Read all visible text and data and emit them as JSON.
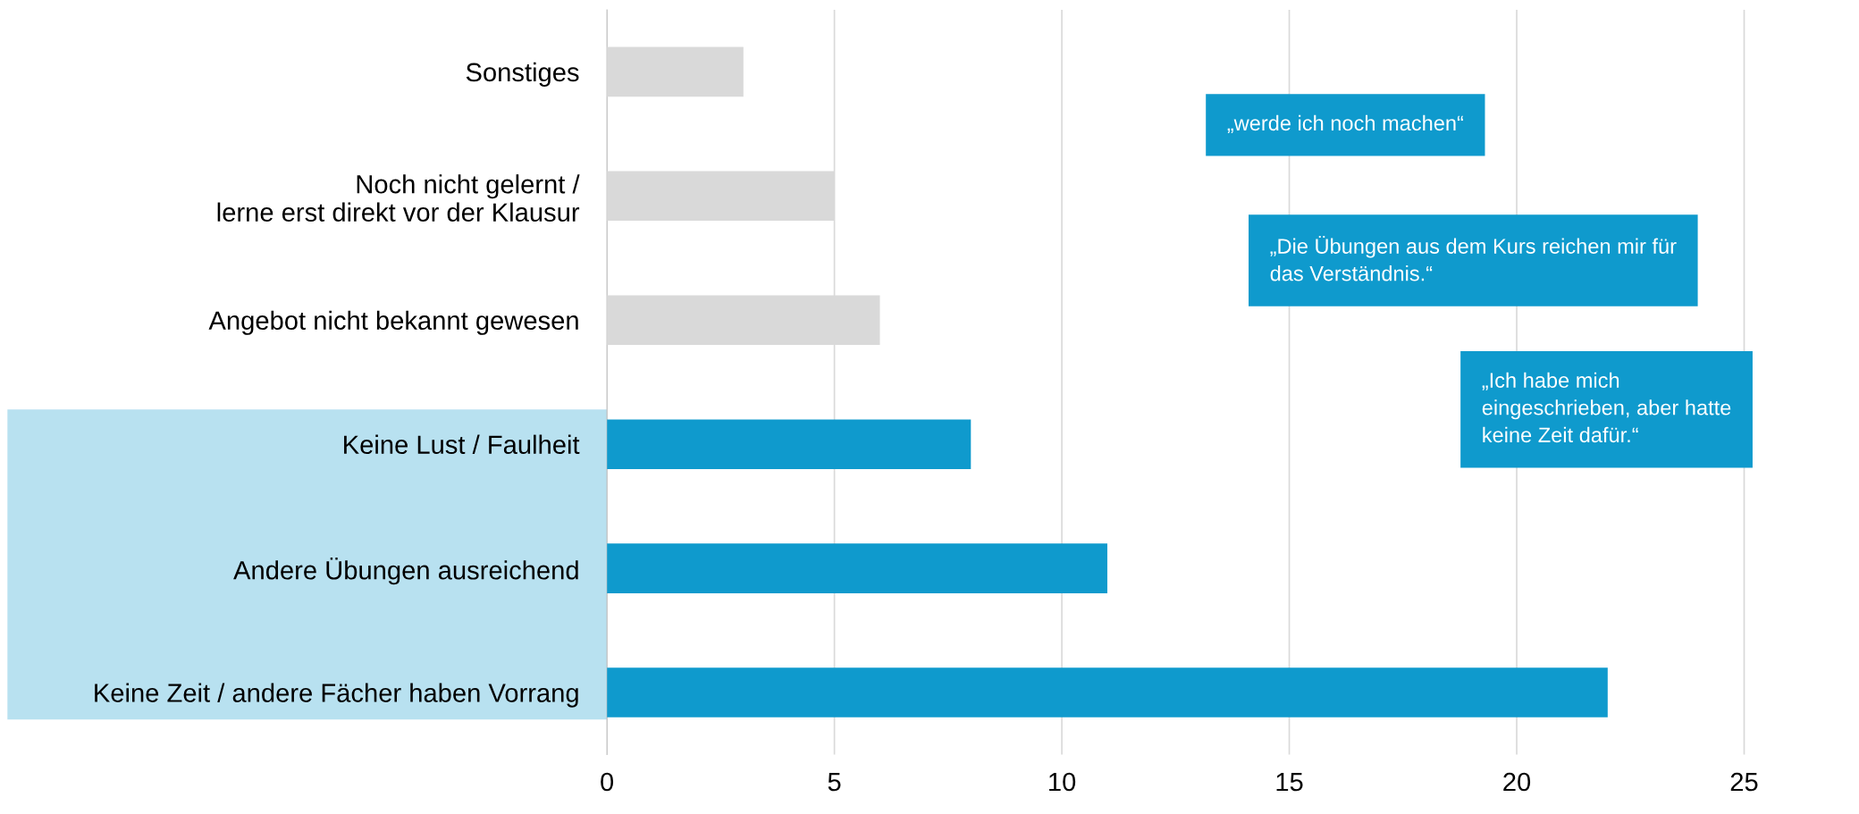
{
  "chart_data": {
    "type": "bar",
    "orientation": "horizontal",
    "categories": [
      "Sonstiges",
      "Noch nicht gelernt /\nlerne erst direkt vor der Klausur",
      "Angebot nicht bekannt gewesen",
      "Keine Lust / Faulheit",
      "Andere Übungen ausreichend",
      "Keine Zeit / andere Fächer haben Vorrang"
    ],
    "values": [
      3,
      5,
      6,
      8,
      11,
      22
    ],
    "colors": [
      "#d9d9d9",
      "#d9d9d9",
      "#d9d9d9",
      "#0f9acd",
      "#0f9acd",
      "#0f9acd"
    ],
    "xlim": [
      0,
      27.3
    ],
    "xticks": [
      0,
      5,
      10,
      15,
      20,
      25
    ],
    "grid": "x",
    "annotations": [
      "„werde ich noch machen“",
      "„Die Übungen aus dem Kurs reichen mir für\ndas Verständnis.“",
      "„Ich habe mich\neingeschrieben, aber hatte\nkeine Zeit dafür.“"
    ]
  }
}
